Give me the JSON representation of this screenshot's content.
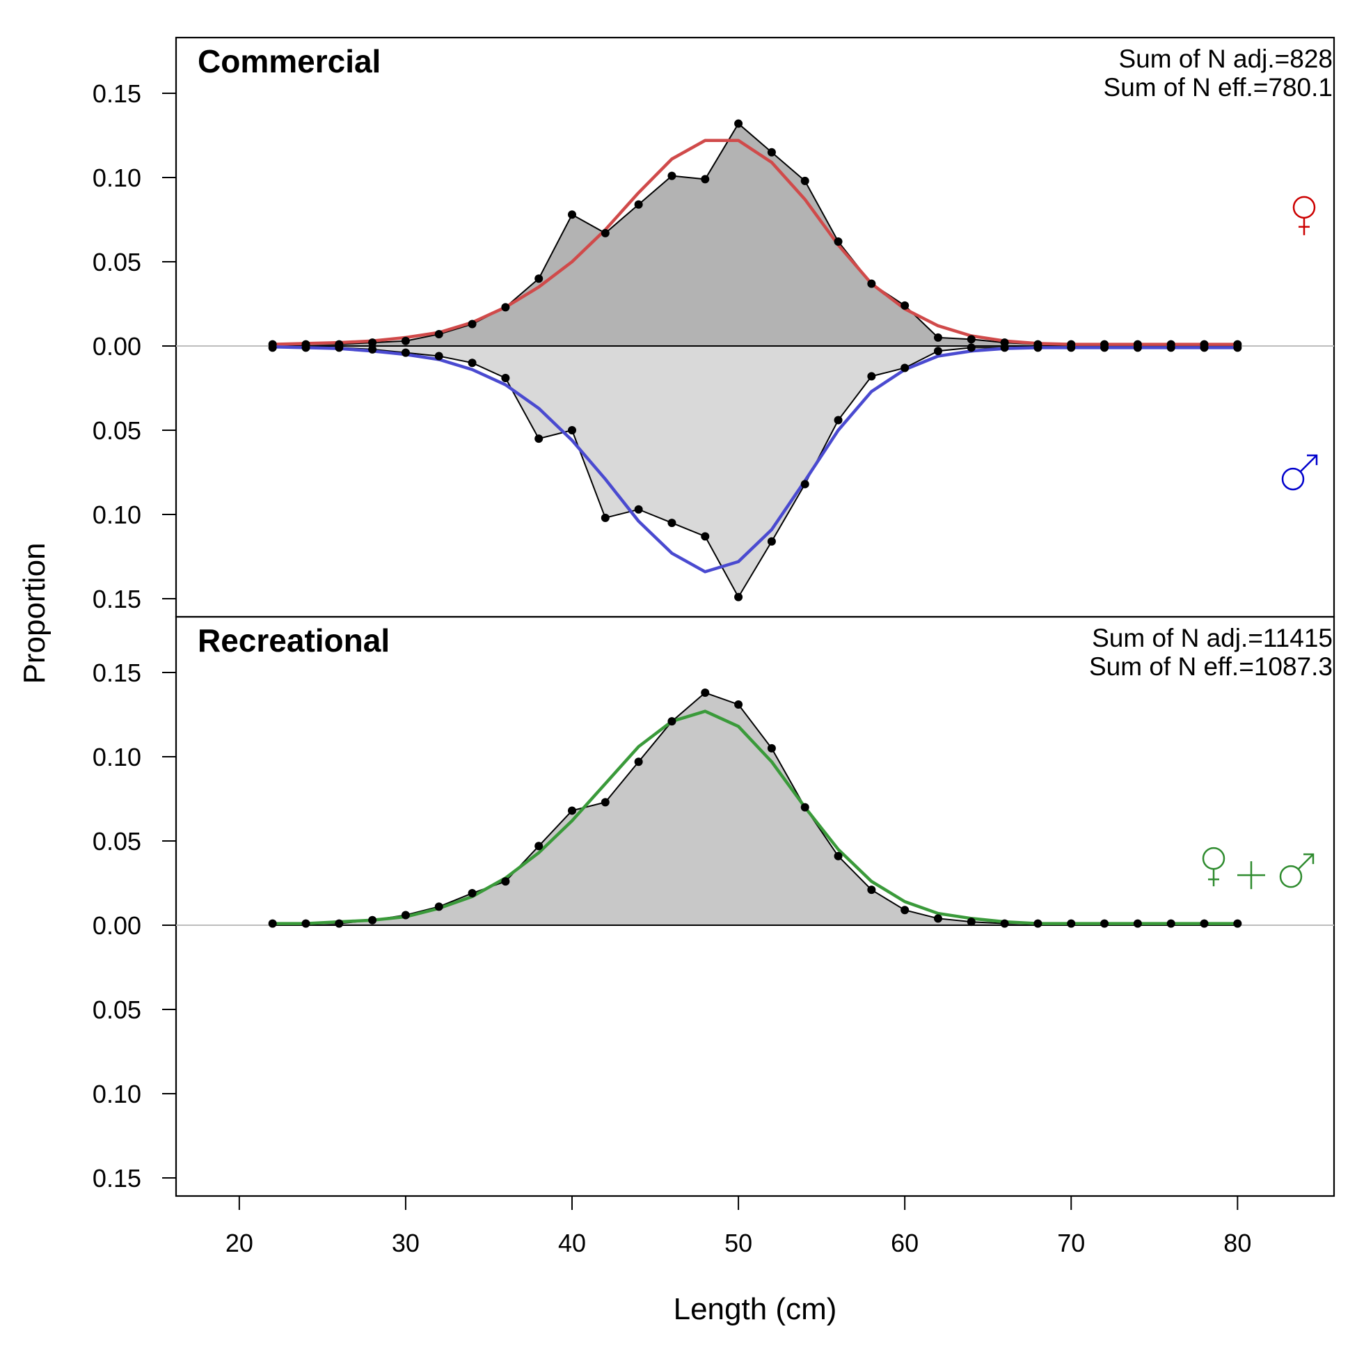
{
  "chart_data": {
    "type": "area",
    "xlabel": "Length (cm)",
    "ylabel": "Proportion",
    "xlim": [
      16.2,
      85.8
    ],
    "x_ticks": [
      20,
      30,
      40,
      50,
      60,
      70,
      80
    ],
    "y_ticks": [
      -0.15,
      -0.1,
      -0.05,
      0,
      0.05,
      0.1,
      0.15
    ],
    "y_tick_labels": [
      "0.15",
      "0.10",
      "0.05",
      "0.00",
      "0.05",
      "0.10",
      "0.15"
    ],
    "x_tick_labels": [
      "20",
      "30",
      "40",
      "50",
      "60",
      "70",
      "80"
    ],
    "ylim": [
      -0.16,
      0.18
    ],
    "x": [
      22,
      24,
      26,
      28,
      30,
      32,
      34,
      36,
      38,
      40,
      42,
      44,
      46,
      48,
      50,
      52,
      54,
      56,
      58,
      60,
      62,
      64,
      66,
      68,
      70,
      72,
      74,
      76,
      78,
      80
    ],
    "panels": [
      {
        "title": "Commercial",
        "stats": [
          "Sum of N adj.=828",
          "Sum of N eff.=780.1"
        ],
        "sex_symbols": [
          {
            "symbol": "♀",
            "color": "#cc0000",
            "y": 0.079
          },
          {
            "symbol": "♂",
            "color": "#0000cc",
            "y": -0.074
          }
        ],
        "series": [
          {
            "sex": "female",
            "fill": "#b3b3b3",
            "observed": [
              0.001,
              0.001,
              0.001,
              0.002,
              0.003,
              0.007,
              0.013,
              0.023,
              0.04,
              0.078,
              0.067,
              0.084,
              0.101,
              0.099,
              0.132,
              0.115,
              0.098,
              0.062,
              0.037,
              0.024,
              0.005,
              0.004,
              0.002,
              0.001,
              0.001,
              0.001,
              0.001,
              0.001,
              0.001,
              0.001
            ],
            "expected": [
              0.001,
              0.0015,
              0.002,
              0.003,
              0.005,
              0.008,
              0.014,
              0.023,
              0.035,
              0.05,
              0.069,
              0.091,
              0.111,
              0.122,
              0.122,
              0.109,
              0.087,
              0.06,
              0.037,
              0.022,
              0.012,
              0.006,
              0.003,
              0.0015,
              0.001,
              0.001,
              0.001,
              0.001,
              0.001,
              0.001
            ],
            "line_color": "#d04a4a"
          },
          {
            "sex": "male",
            "fill": "#d9d9d9",
            "observed": [
              -0.001,
              -0.001,
              -0.001,
              -0.002,
              -0.004,
              -0.006,
              -0.01,
              -0.019,
              -0.055,
              -0.05,
              -0.102,
              -0.097,
              -0.105,
              -0.113,
              -0.149,
              -0.116,
              -0.082,
              -0.044,
              -0.018,
              -0.013,
              -0.003,
              -0.001,
              -0.001,
              -0.001,
              -0.001,
              -0.001,
              -0.001,
              -0.001,
              -0.001,
              -0.001
            ],
            "expected": [
              -0.0005,
              -0.001,
              -0.0015,
              -0.003,
              -0.005,
              -0.008,
              -0.014,
              -0.023,
              -0.037,
              -0.056,
              -0.079,
              -0.104,
              -0.123,
              -0.134,
              -0.128,
              -0.109,
              -0.08,
              -0.05,
              -0.027,
              -0.014,
              -0.006,
              -0.003,
              -0.0015,
              -0.001,
              -0.001,
              -0.001,
              -0.001,
              -0.001,
              -0.001,
              -0.001
            ],
            "line_color": "#4a4ad0"
          }
        ]
      },
      {
        "title": "Recreational",
        "stats": [
          "Sum of N adj.=11415",
          "Sum of N eff.=1087.3"
        ],
        "sex_symbols": [
          {
            "symbol": "♀ + ♂",
            "color": "#2e8b2e",
            "y": 0.033
          }
        ],
        "series": [
          {
            "sex": "combined",
            "fill": "#c8c8c8",
            "observed": [
              0.001,
              0.001,
              0.001,
              0.003,
              0.006,
              0.011,
              0.019,
              0.026,
              0.047,
              0.068,
              0.073,
              0.097,
              0.121,
              0.138,
              0.131,
              0.105,
              0.07,
              0.041,
              0.021,
              0.009,
              0.004,
              0.002,
              0.001,
              0.001,
              0.001,
              0.001,
              0.001,
              0.001,
              0.001,
              0.001
            ],
            "expected": [
              0.001,
              0.001,
              0.002,
              0.003,
              0.005,
              0.01,
              0.017,
              0.028,
              0.043,
              0.062,
              0.084,
              0.106,
              0.121,
              0.127,
              0.118,
              0.097,
              0.07,
              0.045,
              0.026,
              0.014,
              0.007,
              0.004,
              0.002,
              0.001,
              0.001,
              0.001,
              0.001,
              0.001,
              0.001,
              0.001
            ],
            "line_color": "#3a9a3a"
          }
        ]
      }
    ]
  }
}
